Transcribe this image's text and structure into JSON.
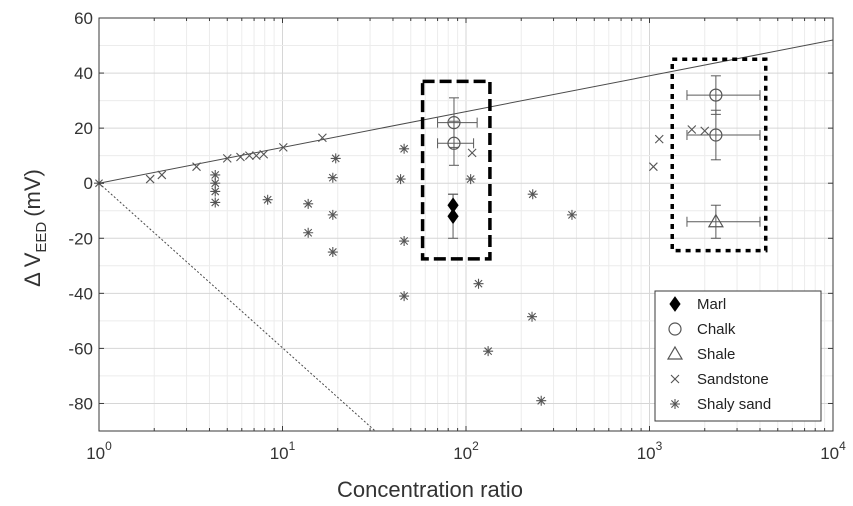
{
  "chart_data": {
    "type": "scatter",
    "title": "",
    "xlabel": "Concentration ratio",
    "ylabel": "Δ V",
    "ylabel_sub": "EED",
    "ylabel_unit": "(mV)",
    "xscale": "log",
    "xlim": [
      1,
      10000
    ],
    "ylim": [
      -90,
      60
    ],
    "grid": true,
    "x_ticks": [
      {
        "base": "10",
        "exp": "0"
      },
      {
        "base": "10",
        "exp": "1"
      },
      {
        "base": "10",
        "exp": "2"
      },
      {
        "base": "10",
        "exp": "3"
      },
      {
        "base": "10",
        "exp": "4"
      }
    ],
    "y_ticks": [
      "60",
      "40",
      "20",
      "0",
      "-20",
      "-40",
      "-60",
      "-80"
    ],
    "legend_position": "bottom-right",
    "series": [
      {
        "name": "Marl",
        "marker": "diamond-filled",
        "points": [
          {
            "x": 85,
            "y": -8,
            "xerr": [
              0,
              0
            ],
            "yerr": 4
          },
          {
            "x": 85,
            "y": -12,
            "xerr": [
              0,
              0
            ],
            "yerr": 8
          }
        ]
      },
      {
        "name": "Chalk",
        "marker": "circle",
        "points": [
          {
            "x": 86,
            "y": 22,
            "xerr": [
              70,
              115
            ],
            "yerr": 9
          },
          {
            "x": 86,
            "y": 14.5,
            "xerr": [
              70,
              110
            ],
            "yerr": 8
          },
          {
            "x": 2300,
            "y": 32,
            "xerr": [
              1600,
              4000
            ],
            "yerr": 7
          },
          {
            "x": 2300,
            "y": 17.5,
            "xerr": [
              1600,
              4000
            ],
            "yerr": 9
          }
        ]
      },
      {
        "name": "Shale",
        "marker": "triangle",
        "points": [
          {
            "x": 2300,
            "y": -14,
            "xerr": [
              1600,
              4000
            ],
            "yerr": 6
          }
        ]
      },
      {
        "name": "Sandstone",
        "marker": "x",
        "points": [
          {
            "x": 1.9,
            "y": 1.5
          },
          {
            "x": 2.2,
            "y": 3
          },
          {
            "x": 3.4,
            "y": 6
          },
          {
            "x": 5,
            "y": 9
          },
          {
            "x": 5.9,
            "y": 9.5
          },
          {
            "x": 6.6,
            "y": 10
          },
          {
            "x": 7.2,
            "y": 10
          },
          {
            "x": 7.9,
            "y": 10.5
          },
          {
            "x": 10.1,
            "y": 13
          },
          {
            "x": 16.5,
            "y": 16.5
          },
          {
            "x": 108,
            "y": 11
          },
          {
            "x": 1050,
            "y": 6
          },
          {
            "x": 1130,
            "y": 16
          },
          {
            "x": 1700,
            "y": 19.5
          },
          {
            "x": 2000,
            "y": 19
          }
        ]
      },
      {
        "name": "Shaly sand",
        "marker": "asterisk",
        "points": [
          {
            "x": 1,
            "y": 0
          },
          {
            "x": 4.3,
            "y": 3
          },
          {
            "x": 4.3,
            "y": 0
          },
          {
            "x": 4.3,
            "y": -3
          },
          {
            "x": 4.3,
            "y": -7
          },
          {
            "x": 8.3,
            "y": -6
          },
          {
            "x": 13.8,
            "y": -7.5
          },
          {
            "x": 13.8,
            "y": -18
          },
          {
            "x": 18.8,
            "y": -11.5
          },
          {
            "x": 18.8,
            "y": -25
          },
          {
            "x": 18.8,
            "y": 2
          },
          {
            "x": 19.5,
            "y": 9
          },
          {
            "x": 44,
            "y": 1.5
          },
          {
            "x": 46,
            "y": 12.5
          },
          {
            "x": 46,
            "y": -21
          },
          {
            "x": 46,
            "y": -41
          },
          {
            "x": 106,
            "y": 1.5
          },
          {
            "x": 117,
            "y": -36.5
          },
          {
            "x": 132,
            "y": -61
          },
          {
            "x": 229,
            "y": -48.5
          },
          {
            "x": 231,
            "y": -4
          },
          {
            "x": 257,
            "y": -79
          },
          {
            "x": 378,
            "y": -11.5
          }
        ]
      }
    ],
    "reference_lines": [
      {
        "style": "solid",
        "x": [
          1,
          10000
        ],
        "y": [
          0,
          52
        ]
      },
      {
        "style": "dotted",
        "x": [
          1,
          32
        ],
        "y": [
          0,
          -90
        ]
      }
    ],
    "highlight_boxes": [
      {
        "style": "dashed",
        "x": [
          58,
          135
        ],
        "y": [
          -27.5,
          37
        ]
      },
      {
        "style": "dotted",
        "x": [
          1330,
          4300
        ],
        "y": [
          -24.5,
          45
        ]
      }
    ]
  }
}
